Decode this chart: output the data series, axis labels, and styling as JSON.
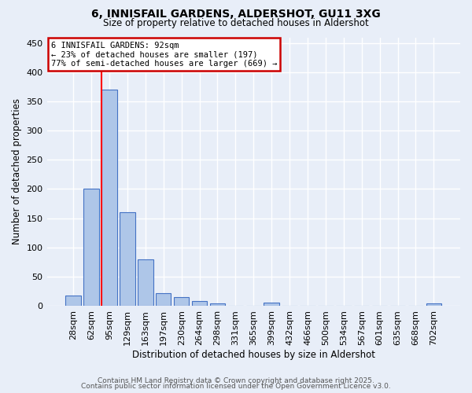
{
  "title": "6, INNISFAIL GARDENS, ALDERSHOT, GU11 3XG",
  "subtitle": "Size of property relative to detached houses in Aldershot",
  "xlabel": "Distribution of detached houses by size in Aldershot",
  "ylabel": "Number of detached properties",
  "bar_labels": [
    "28sqm",
    "62sqm",
    "95sqm",
    "129sqm",
    "163sqm",
    "197sqm",
    "230sqm",
    "264sqm",
    "298sqm",
    "331sqm",
    "365sqm",
    "399sqm",
    "432sqm",
    "466sqm",
    "500sqm",
    "534sqm",
    "567sqm",
    "601sqm",
    "635sqm",
    "668sqm",
    "702sqm"
  ],
  "bar_values": [
    18,
    200,
    370,
    160,
    80,
    22,
    15,
    8,
    4,
    0,
    0,
    5,
    0,
    0,
    0,
    0,
    0,
    0,
    0,
    0,
    4
  ],
  "bar_color": "#aec6e8",
  "bar_edge_color": "#4472c4",
  "red_line_bar_index": 2,
  "annotation_text": "6 INNISFAIL GARDENS: 92sqm\n← 23% of detached houses are smaller (197)\n77% of semi-detached houses are larger (669) →",
  "annotation_box_color": "#ffffff",
  "annotation_box_edge": "#cc0000",
  "ylim": [
    0,
    460
  ],
  "yticks": [
    0,
    50,
    100,
    150,
    200,
    250,
    300,
    350,
    400,
    450
  ],
  "bg_color": "#e8eef8",
  "grid_color": "#ffffff",
  "footer_line1": "Contains HM Land Registry data © Crown copyright and database right 2025.",
  "footer_line2": "Contains public sector information licensed under the Open Government Licence v3.0."
}
